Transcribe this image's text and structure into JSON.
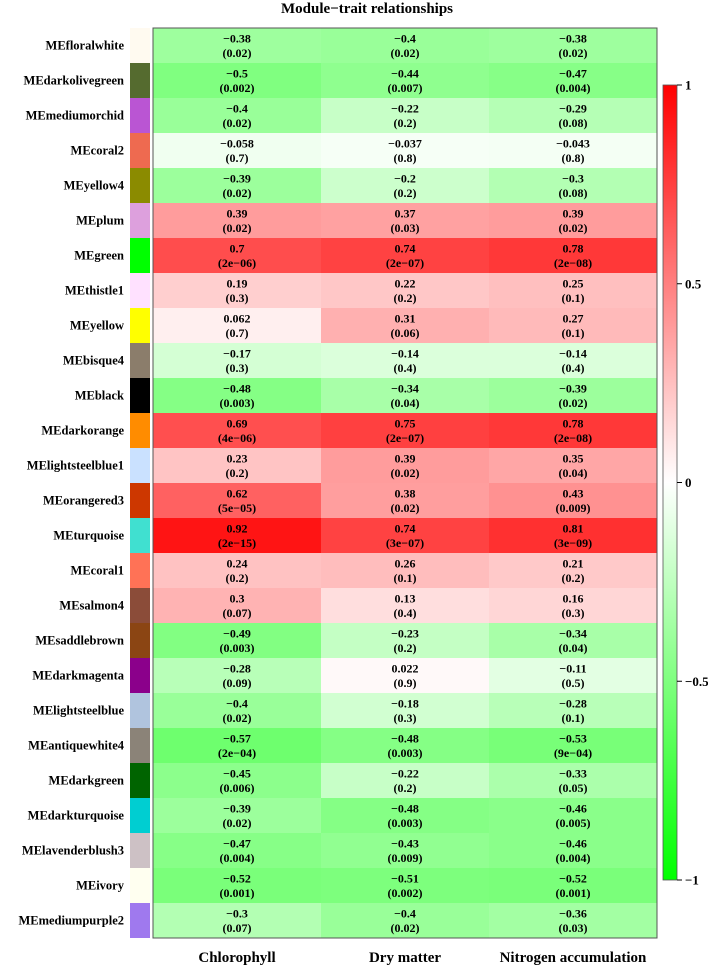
{
  "chart_data": {
    "type": "heatmap",
    "title": "Module−trait relationships",
    "columns": [
      "Chlorophyll",
      "Dry matter",
      "Nitrogen accumulation"
    ],
    "rows": [
      {
        "name": "MEfloralwhite",
        "color": "#FFFAF0",
        "values": [
          -0.38,
          -0.4,
          -0.38
        ],
        "labels": [
          "−0.38",
          "−0.4",
          "−0.38"
        ],
        "pvalues": [
          "(0.02)",
          "(0.02)",
          "(0.02)"
        ]
      },
      {
        "name": "MEdarkolivegreen",
        "color": "#556B2F",
        "values": [
          -0.5,
          -0.44,
          -0.47
        ],
        "labels": [
          "−0.5",
          "−0.44",
          "−0.47"
        ],
        "pvalues": [
          "(0.002)",
          "(0.007)",
          "(0.004)"
        ]
      },
      {
        "name": "MEmediumorchid",
        "color": "#BA55D3",
        "values": [
          -0.4,
          -0.22,
          -0.29
        ],
        "labels": [
          "−0.4",
          "−0.22",
          "−0.29"
        ],
        "pvalues": [
          "(0.02)",
          "(0.2)",
          "(0.08)"
        ]
      },
      {
        "name": "MEcoral2",
        "color": "#EE6A50",
        "values": [
          -0.058,
          -0.037,
          -0.043
        ],
        "labels": [
          "−0.058",
          "−0.037",
          "−0.043"
        ],
        "pvalues": [
          "(0.7)",
          "(0.8)",
          "(0.8)"
        ]
      },
      {
        "name": "MEyellow4",
        "color": "#8B8B00",
        "values": [
          -0.39,
          -0.2,
          -0.3
        ],
        "labels": [
          "−0.39",
          "−0.2",
          "−0.3"
        ],
        "pvalues": [
          "(0.02)",
          "(0.2)",
          "(0.08)"
        ]
      },
      {
        "name": "MEplum",
        "color": "#DDA0DD",
        "values": [
          0.39,
          0.37,
          0.39
        ],
        "labels": [
          "0.39",
          "0.37",
          "0.39"
        ],
        "pvalues": [
          "(0.02)",
          "(0.03)",
          "(0.02)"
        ]
      },
      {
        "name": "MEgreen",
        "color": "#00FF00",
        "values": [
          0.7,
          0.74,
          0.78
        ],
        "labels": [
          "0.7",
          "0.74",
          "0.78"
        ],
        "pvalues": [
          "(2e−06)",
          "(2e−07)",
          "(2e−08)"
        ]
      },
      {
        "name": "MEthistle1",
        "color": "#FFE1FF",
        "values": [
          0.19,
          0.22,
          0.25
        ],
        "labels": [
          "0.19",
          "0.22",
          "0.25"
        ],
        "pvalues": [
          "(0.3)",
          "(0.2)",
          "(0.1)"
        ]
      },
      {
        "name": "MEyellow",
        "color": "#FFFF00",
        "values": [
          0.062,
          0.31,
          0.27
        ],
        "labels": [
          "0.062",
          "0.31",
          "0.27"
        ],
        "pvalues": [
          "(0.7)",
          "(0.06)",
          "(0.1)"
        ]
      },
      {
        "name": "MEbisque4",
        "color": "#8B7D6B",
        "values": [
          -0.17,
          -0.14,
          -0.14
        ],
        "labels": [
          "−0.17",
          "−0.14",
          "−0.14"
        ],
        "pvalues": [
          "(0.3)",
          "(0.4)",
          "(0.4)"
        ]
      },
      {
        "name": "MEblack",
        "color": "#000000",
        "values": [
          -0.48,
          -0.34,
          -0.39
        ],
        "labels": [
          "−0.48",
          "−0.34",
          "−0.39"
        ],
        "pvalues": [
          "(0.003)",
          "(0.04)",
          "(0.02)"
        ]
      },
      {
        "name": "MEdarkorange",
        "color": "#FF8C00",
        "values": [
          0.69,
          0.75,
          0.78
        ],
        "labels": [
          "0.69",
          "0.75",
          "0.78"
        ],
        "pvalues": [
          "(4e−06)",
          "(2e−07)",
          "(2e−08)"
        ]
      },
      {
        "name": "MElightsteelblue1",
        "color": "#CAE1FF",
        "values": [
          0.23,
          0.39,
          0.35
        ],
        "labels": [
          "0.23",
          "0.39",
          "0.35"
        ],
        "pvalues": [
          "(0.2)",
          "(0.02)",
          "(0.04)"
        ]
      },
      {
        "name": "MEorangered3",
        "color": "#CD3700",
        "values": [
          0.62,
          0.38,
          0.43
        ],
        "labels": [
          "0.62",
          "0.38",
          "0.43"
        ],
        "pvalues": [
          "(5e−05)",
          "(0.02)",
          "(0.009)"
        ]
      },
      {
        "name": "MEturquoise",
        "color": "#40E0D0",
        "values": [
          0.92,
          0.74,
          0.81
        ],
        "labels": [
          "0.92",
          "0.74",
          "0.81"
        ],
        "pvalues": [
          "(2e−15)",
          "(3e−07)",
          "(3e−09)"
        ]
      },
      {
        "name": "MEcoral1",
        "color": "#FF7256",
        "values": [
          0.24,
          0.26,
          0.21
        ],
        "labels": [
          "0.24",
          "0.26",
          "0.21"
        ],
        "pvalues": [
          "(0.2)",
          "(0.1)",
          "(0.2)"
        ]
      },
      {
        "name": "MEsalmon4",
        "color": "#8B4C39",
        "values": [
          0.3,
          0.13,
          0.16
        ],
        "labels": [
          "0.3",
          "0.13",
          "0.16"
        ],
        "pvalues": [
          "(0.07)",
          "(0.4)",
          "(0.3)"
        ]
      },
      {
        "name": "MEsaddlebrown",
        "color": "#8B4513",
        "values": [
          -0.49,
          -0.23,
          -0.34
        ],
        "labels": [
          "−0.49",
          "−0.23",
          "−0.34"
        ],
        "pvalues": [
          "(0.003)",
          "(0.2)",
          "(0.04)"
        ]
      },
      {
        "name": "MEdarkmagenta",
        "color": "#8B008B",
        "values": [
          -0.28,
          0.022,
          -0.11
        ],
        "labels": [
          "−0.28",
          "0.022",
          "−0.11"
        ],
        "pvalues": [
          "(0.09)",
          "(0.9)",
          "(0.5)"
        ]
      },
      {
        "name": "MElightsteelblue",
        "color": "#B0C4DE",
        "values": [
          -0.4,
          -0.18,
          -0.28
        ],
        "labels": [
          "−0.4",
          "−0.18",
          "−0.28"
        ],
        "pvalues": [
          "(0.02)",
          "(0.3)",
          "(0.1)"
        ]
      },
      {
        "name": "MEantiquewhite4",
        "color": "#8B8378",
        "values": [
          -0.57,
          -0.48,
          -0.53
        ],
        "labels": [
          "−0.57",
          "−0.48",
          "−0.53"
        ],
        "pvalues": [
          "(2e−04)",
          "(0.003)",
          "(9e−04)"
        ]
      },
      {
        "name": "MEdarkgreen",
        "color": "#006400",
        "values": [
          -0.45,
          -0.22,
          -0.33
        ],
        "labels": [
          "−0.45",
          "−0.22",
          "−0.33"
        ],
        "pvalues": [
          "(0.006)",
          "(0.2)",
          "(0.05)"
        ]
      },
      {
        "name": "MEdarkturquoise",
        "color": "#00CED1",
        "values": [
          -0.39,
          -0.48,
          -0.46
        ],
        "labels": [
          "−0.39",
          "−0.48",
          "−0.46"
        ],
        "pvalues": [
          "(0.02)",
          "(0.003)",
          "(0.005)"
        ]
      },
      {
        "name": "MElavenderblush3",
        "color": "#CDC1C5",
        "values": [
          -0.47,
          -0.43,
          -0.46
        ],
        "labels": [
          "−0.47",
          "−0.43",
          "−0.46"
        ],
        "pvalues": [
          "(0.004)",
          "(0.009)",
          "(0.004)"
        ]
      },
      {
        "name": "MEivory",
        "color": "#FFFFF0",
        "values": [
          -0.52,
          -0.51,
          -0.52
        ],
        "labels": [
          "−0.52",
          "−0.51",
          "−0.52"
        ],
        "pvalues": [
          "(0.001)",
          "(0.002)",
          "(0.001)"
        ]
      },
      {
        "name": "MEmediumpurple2",
        "color": "#9F79EE",
        "values": [
          -0.3,
          -0.4,
          -0.36
        ],
        "labels": [
          "−0.3",
          "−0.4",
          "−0.36"
        ],
        "pvalues": [
          "(0.07)",
          "(0.02)",
          "(0.03)"
        ]
      }
    ],
    "colorscale": {
      "min": -1,
      "max": 1,
      "negative_color": "#00FF00",
      "neutral_color": "#FFFFFF",
      "positive_color": "#FF0000",
      "ticks": [
        1,
        0.5,
        0,
        -0.5,
        -1
      ],
      "tick_labels": [
        "1",
        "0.5",
        "0",
        "−0.5",
        "−1"
      ],
      "placement": "right"
    }
  }
}
